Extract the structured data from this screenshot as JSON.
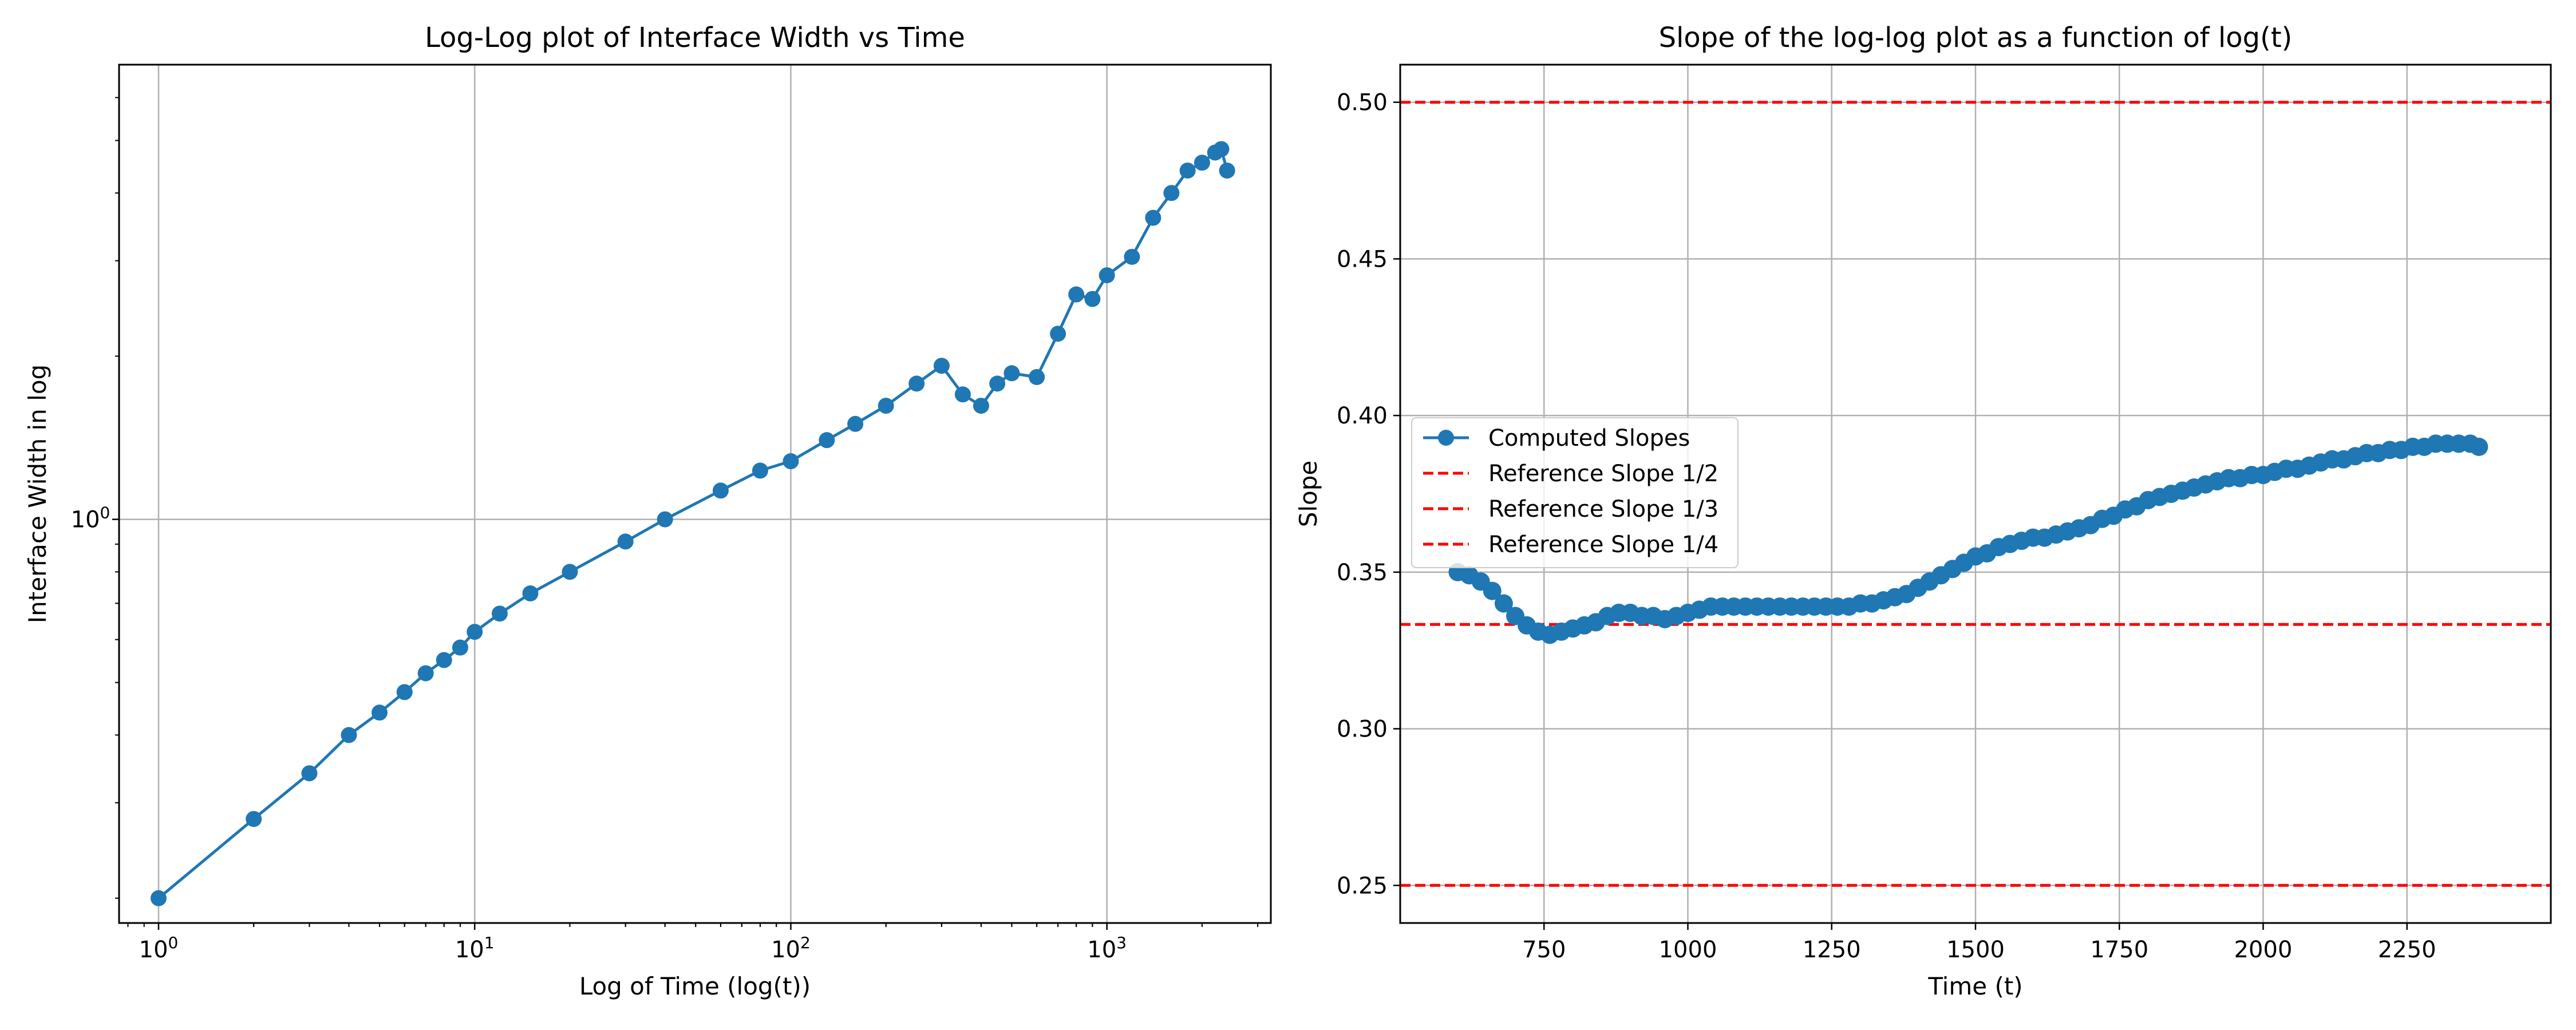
{
  "colors": {
    "series": "#1f77b4",
    "reference": "#ff0000",
    "grid": "#b0b0b0",
    "axes": "#000000",
    "background": "#ffffff"
  },
  "chart_data": [
    {
      "type": "line",
      "title": "Log-Log plot of Interface Width vs Time",
      "xlabel": "Log of Time (log(t))",
      "ylabel": "Interface Width in log",
      "xscale": "log",
      "yscale": "log",
      "xlim": [
        0.75,
        3300
      ],
      "ylim": [
        0.18,
        6.9
      ],
      "grid": true,
      "legend": null,
      "x_major_ticks": [
        {
          "value": 1,
          "base": "10",
          "exp": "0"
        },
        {
          "value": 10,
          "base": "10",
          "exp": "1"
        },
        {
          "value": 100,
          "base": "10",
          "exp": "2"
        },
        {
          "value": 1000,
          "base": "10",
          "exp": "3"
        }
      ],
      "y_major_ticks": [
        {
          "value": 1,
          "base": "10",
          "exp": "0"
        }
      ],
      "series": [
        {
          "marker": "o",
          "x": [
            1,
            2,
            3,
            4,
            5,
            6,
            7,
            8,
            9,
            10,
            12,
            15,
            20,
            30,
            40,
            60,
            80,
            100,
            130,
            160,
            200,
            250,
            300,
            350,
            400,
            450,
            500,
            600,
            700,
            800,
            900,
            1000,
            1200,
            1400,
            1600,
            1800,
            2000,
            2200,
            2300,
            2400
          ],
          "y": [
            0.2,
            0.28,
            0.34,
            0.4,
            0.44,
            0.48,
            0.52,
            0.55,
            0.58,
            0.62,
            0.67,
            0.73,
            0.8,
            0.91,
            1.0,
            1.13,
            1.23,
            1.28,
            1.4,
            1.5,
            1.62,
            1.78,
            1.92,
            1.7,
            1.62,
            1.78,
            1.86,
            1.83,
            2.2,
            2.6,
            2.55,
            2.82,
            3.05,
            3.6,
            4.0,
            4.4,
            4.55,
            4.75,
            4.82,
            4.4
          ]
        }
      ]
    },
    {
      "type": "line",
      "title": "Slope of the log-log plot as a function of log(t)",
      "xlabel": "Time (t)",
      "ylabel": "Slope",
      "xlim": [
        500,
        2500
      ],
      "ylim": [
        0.238,
        0.512
      ],
      "grid": true,
      "legend": "center-left",
      "x_ticks": [
        750,
        1000,
        1250,
        1500,
        1750,
        2000,
        2250
      ],
      "x_tick_labels": [
        "750",
        "1000",
        "1250",
        "1500",
        "1750",
        "2000",
        "2250"
      ],
      "y_ticks": [
        0.25,
        0.3,
        0.35,
        0.4,
        0.45,
        0.5
      ],
      "y_tick_labels": [
        "0.25",
        "0.30",
        "0.35",
        "0.40",
        "0.45",
        "0.50"
      ],
      "series": [
        {
          "name": "Computed Slopes",
          "marker": "o",
          "x": [
            600,
            620,
            640,
            660,
            680,
            700,
            720,
            740,
            760,
            780,
            800,
            820,
            840,
            860,
            880,
            900,
            920,
            940,
            960,
            980,
            1000,
            1020,
            1040,
            1060,
            1080,
            1100,
            1120,
            1140,
            1160,
            1180,
            1200,
            1220,
            1240,
            1260,
            1280,
            1300,
            1320,
            1340,
            1360,
            1380,
            1400,
            1420,
            1440,
            1460,
            1480,
            1500,
            1520,
            1540,
            1560,
            1580,
            1600,
            1620,
            1640,
            1660,
            1680,
            1700,
            1720,
            1740,
            1760,
            1780,
            1800,
            1820,
            1840,
            1860,
            1880,
            1900,
            1920,
            1940,
            1960,
            1980,
            2000,
            2020,
            2040,
            2060,
            2080,
            2100,
            2120,
            2140,
            2160,
            2180,
            2200,
            2220,
            2240,
            2260,
            2280,
            2300,
            2320,
            2340,
            2360,
            2375
          ],
          "y": [
            0.35,
            0.349,
            0.347,
            0.344,
            0.34,
            0.336,
            0.333,
            0.331,
            0.33,
            0.331,
            0.332,
            0.333,
            0.334,
            0.336,
            0.337,
            0.337,
            0.336,
            0.336,
            0.335,
            0.336,
            0.337,
            0.338,
            0.339,
            0.339,
            0.339,
            0.339,
            0.339,
            0.339,
            0.339,
            0.339,
            0.339,
            0.339,
            0.339,
            0.339,
            0.339,
            0.34,
            0.34,
            0.341,
            0.342,
            0.343,
            0.345,
            0.347,
            0.349,
            0.351,
            0.353,
            0.355,
            0.356,
            0.358,
            0.359,
            0.36,
            0.361,
            0.361,
            0.362,
            0.363,
            0.364,
            0.365,
            0.367,
            0.368,
            0.37,
            0.371,
            0.373,
            0.374,
            0.375,
            0.376,
            0.377,
            0.378,
            0.379,
            0.38,
            0.38,
            0.381,
            0.381,
            0.382,
            0.383,
            0.383,
            0.384,
            0.385,
            0.386,
            0.386,
            0.387,
            0.388,
            0.388,
            0.389,
            0.389,
            0.39,
            0.39,
            0.391,
            0.391,
            0.391,
            0.391,
            0.39
          ]
        }
      ],
      "reference_lines": [
        {
          "name": "Reference Slope 1/2",
          "value": 0.5
        },
        {
          "name": "Reference Slope 1/3",
          "value": 0.3333
        },
        {
          "name": "Reference Slope 1/4",
          "value": 0.25
        }
      ]
    }
  ]
}
